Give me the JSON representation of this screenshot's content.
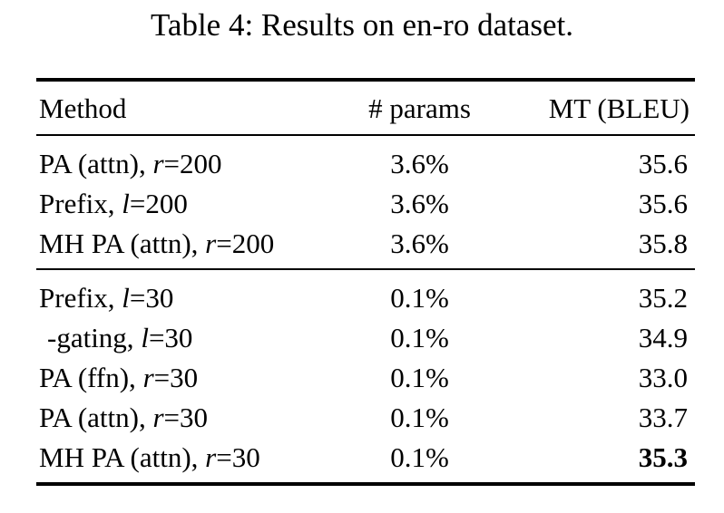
{
  "caption": "Table 4: Results on en-ro dataset.",
  "colors": {
    "text": "#000000",
    "background": "#ffffff",
    "rule": "#000000"
  },
  "table": {
    "headers": [
      "Method",
      "# params",
      "MT (BLEU)"
    ],
    "groups": [
      {
        "rows": [
          {
            "method_text": "PA (attn), ",
            "method_var": "r",
            "method_suffix": "=200",
            "params": "3.6%",
            "bleu": "35.6",
            "indent": false,
            "bleu_bold": false
          },
          {
            "method_text": "Prefix, ",
            "method_var": "l",
            "method_suffix": "=200",
            "params": "3.6%",
            "bleu": "35.6",
            "indent": false,
            "bleu_bold": false
          },
          {
            "method_text": "MH PA (attn), ",
            "method_var": "r",
            "method_suffix": "=200",
            "params": "3.6%",
            "bleu": "35.8",
            "indent": false,
            "bleu_bold": false
          }
        ]
      },
      {
        "rows": [
          {
            "method_text": "Prefix, ",
            "method_var": "l",
            "method_suffix": "=30",
            "params": "0.1%",
            "bleu": "35.2",
            "indent": false,
            "bleu_bold": false
          },
          {
            "method_text": "-gating, ",
            "method_var": "l",
            "method_suffix": "=30",
            "params": "0.1%",
            "bleu": "34.9",
            "indent": true,
            "bleu_bold": false
          },
          {
            "method_text": "PA (ffn), ",
            "method_var": "r",
            "method_suffix": "=30",
            "params": "0.1%",
            "bleu": "33.0",
            "indent": false,
            "bleu_bold": false
          },
          {
            "method_text": "PA (attn), ",
            "method_var": "r",
            "method_suffix": "=30",
            "params": "0.1%",
            "bleu": "33.7",
            "indent": false,
            "bleu_bold": false
          },
          {
            "method_text": "MH PA (attn), ",
            "method_var": "r",
            "method_suffix": "=30",
            "params": "0.1%",
            "bleu": "35.3",
            "indent": false,
            "bleu_bold": true
          }
        ]
      }
    ]
  }
}
